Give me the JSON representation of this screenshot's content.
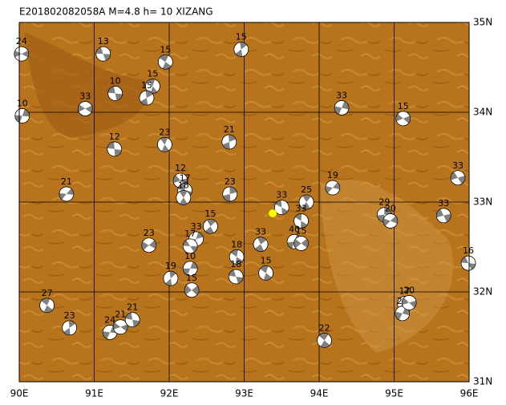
{
  "map": {
    "title": "E201802082058A M=4.8 h= 10 XIZANG",
    "lonlim": [
      90,
      96
    ],
    "latlim": [
      31,
      35
    ],
    "xticks": [
      {
        "value": 90,
        "label": "90E"
      },
      {
        "value": 91,
        "label": "91E"
      },
      {
        "value": 92,
        "label": "92E"
      },
      {
        "value": 93,
        "label": "93E"
      },
      {
        "value": 94,
        "label": "94E"
      },
      {
        "value": 95,
        "label": "95E"
      },
      {
        "value": 96,
        "label": "96E"
      }
    ],
    "yticks": [
      {
        "value": 31,
        "label": "31N"
      },
      {
        "value": 32,
        "label": "32N"
      },
      {
        "value": 33,
        "label": "33N"
      },
      {
        "value": 34,
        "label": "34N"
      },
      {
        "value": 35,
        "label": "35N"
      }
    ],
    "grid": true,
    "epicenter": {
      "lon": 93.38,
      "lat": 32.875,
      "color": "#ffff00"
    },
    "events": [
      {
        "lon": 90.03,
        "lat": 34.65,
        "label": 24
      },
      {
        "lon": 91.12,
        "lat": 34.65,
        "label": 13
      },
      {
        "lon": 91.95,
        "lat": 34.56,
        "label": 15
      },
      {
        "lon": 92.96,
        "lat": 34.7,
        "label": 15
      },
      {
        "lon": 90.04,
        "lat": 33.96,
        "label": 10
      },
      {
        "lon": 90.88,
        "lat": 34.04,
        "label": 33
      },
      {
        "lon": 91.28,
        "lat": 34.21,
        "label": 10
      },
      {
        "lon": 91.78,
        "lat": 34.29,
        "label": 15
      },
      {
        "lon": 91.7,
        "lat": 34.16,
        "label": 15
      },
      {
        "lon": 94.3,
        "lat": 34.05,
        "label": 33
      },
      {
        "lon": 95.12,
        "lat": 33.93,
        "label": 15
      },
      {
        "lon": 91.27,
        "lat": 33.59,
        "label": 12
      },
      {
        "lon": 91.94,
        "lat": 33.64,
        "label": 23
      },
      {
        "lon": 92.8,
        "lat": 33.67,
        "label": 21
      },
      {
        "lon": 90.63,
        "lat": 33.09,
        "label": 21
      },
      {
        "lon": 92.15,
        "lat": 33.24,
        "label": 12
      },
      {
        "lon": 92.21,
        "lat": 33.13,
        "label": 17
      },
      {
        "lon": 92.19,
        "lat": 33.05,
        "label": 18
      },
      {
        "lon": 92.81,
        "lat": 33.09,
        "label": 23
      },
      {
        "lon": 94.18,
        "lat": 33.16,
        "label": 19
      },
      {
        "lon": 95.85,
        "lat": 33.27,
        "label": 33
      },
      {
        "lon": 93.5,
        "lat": 32.94,
        "label": 33
      },
      {
        "lon": 93.83,
        "lat": 33.0,
        "label": 25
      },
      {
        "lon": 94.87,
        "lat": 32.86,
        "label": 29
      },
      {
        "lon": 94.95,
        "lat": 32.79,
        "label": 20
      },
      {
        "lon": 95.66,
        "lat": 32.85,
        "label": 33
      },
      {
        "lon": 93.76,
        "lat": 32.79,
        "label": 33
      },
      {
        "lon": 92.55,
        "lat": 32.73,
        "label": 15
      },
      {
        "lon": 92.36,
        "lat": 32.59,
        "label": 33
      },
      {
        "lon": 91.73,
        "lat": 32.52,
        "label": 23
      },
      {
        "lon": 92.28,
        "lat": 32.51,
        "label": 17
      },
      {
        "lon": 92.9,
        "lat": 32.39,
        "label": 18
      },
      {
        "lon": 93.22,
        "lat": 32.53,
        "label": 33
      },
      {
        "lon": 93.67,
        "lat": 32.56,
        "label": 40
      },
      {
        "lon": 93.76,
        "lat": 32.54,
        "label": 15
      },
      {
        "lon": 95.99,
        "lat": 32.32,
        "label": 16
      },
      {
        "lon": 93.29,
        "lat": 32.21,
        "label": 15
      },
      {
        "lon": 92.02,
        "lat": 32.15,
        "label": 19
      },
      {
        "lon": 92.28,
        "lat": 32.26,
        "label": 10
      },
      {
        "lon": 92.3,
        "lat": 32.02,
        "label": 15
      },
      {
        "lon": 92.89,
        "lat": 32.17,
        "label": 18
      },
      {
        "lon": 90.37,
        "lat": 31.85,
        "label": 27
      },
      {
        "lon": 90.67,
        "lat": 31.6,
        "label": 23
      },
      {
        "lon": 91.21,
        "lat": 31.55,
        "label": 24
      },
      {
        "lon": 91.35,
        "lat": 31.61,
        "label": 21
      },
      {
        "lon": 91.51,
        "lat": 31.69,
        "label": 21
      },
      {
        "lon": 94.07,
        "lat": 31.46,
        "label": 22
      },
      {
        "lon": 95.14,
        "lat": 31.87,
        "label": 17
      },
      {
        "lon": 95.11,
        "lat": 31.76,
        "label": 20
      },
      {
        "lon": 95.2,
        "lat": 31.88,
        "label": 20
      }
    ]
  }
}
